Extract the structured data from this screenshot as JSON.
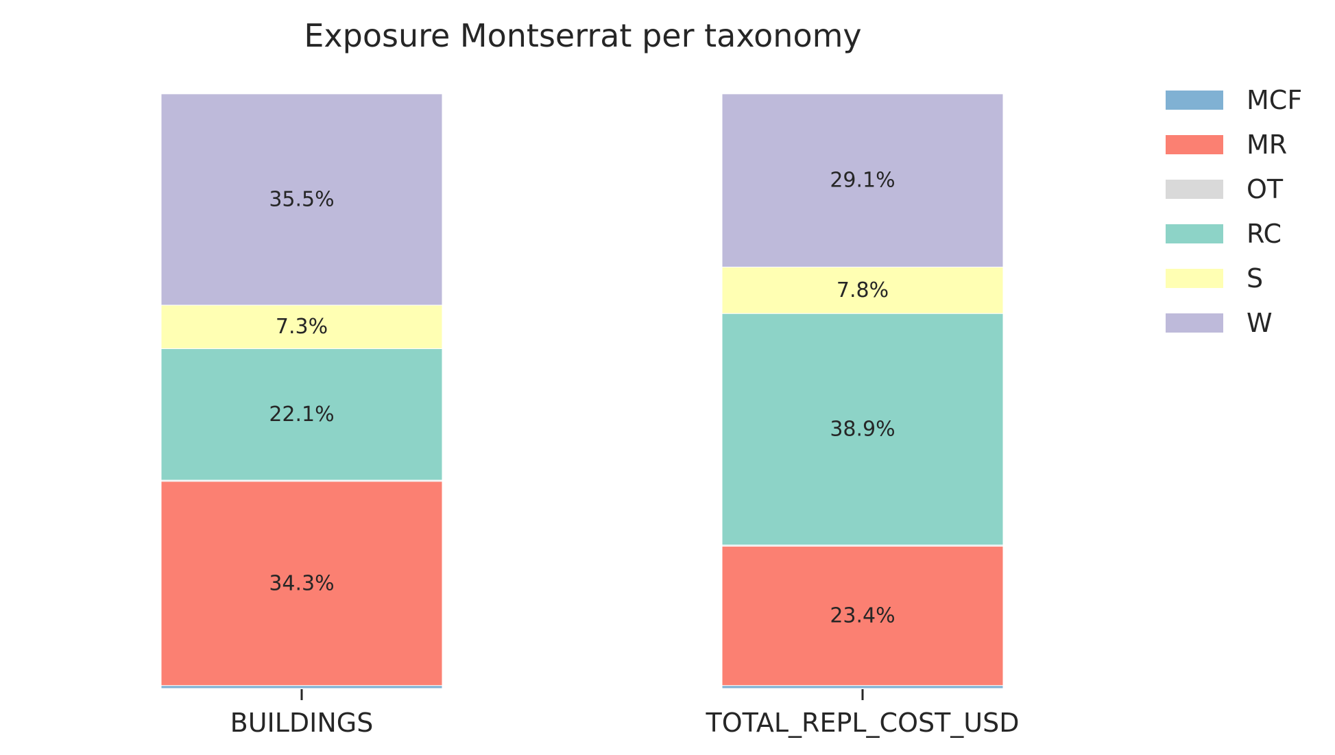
{
  "chart_data": {
    "type": "bar",
    "stacked": true,
    "normalized": true,
    "title": "Exposure Montserrat per taxonomy",
    "xlabel": "",
    "ylabel": "",
    "ylim": [
      0,
      100
    ],
    "grid": false,
    "legend_placement": "top-right, outside plot",
    "categories": [
      "BUILDINGS",
      "TOTAL_REPL_COST_USD"
    ],
    "series": [
      {
        "name": "MCF",
        "color": "#80b1d3",
        "values": [
          0.5,
          0.5
        ],
        "labels": [
          "",
          ""
        ]
      },
      {
        "name": "MR",
        "color": "#fb8072",
        "values": [
          34.3,
          23.4
        ],
        "labels": [
          "34.3%",
          "23.4%"
        ]
      },
      {
        "name": "OT",
        "color": "#d9d9d9",
        "values": [
          0.2,
          0.2
        ],
        "labels": [
          "",
          ""
        ]
      },
      {
        "name": "RC",
        "color": "#8dd3c7",
        "values": [
          22.1,
          38.9
        ],
        "labels": [
          "22.1%",
          "38.9%"
        ]
      },
      {
        "name": "S",
        "color": "#ffffb3",
        "values": [
          7.3,
          7.8
        ],
        "labels": [
          "7.3%",
          "7.8%"
        ]
      },
      {
        "name": "W",
        "color": "#bebada",
        "values": [
          35.5,
          29.1
        ],
        "labels": [
          "35.5%",
          "29.1%"
        ]
      }
    ]
  }
}
